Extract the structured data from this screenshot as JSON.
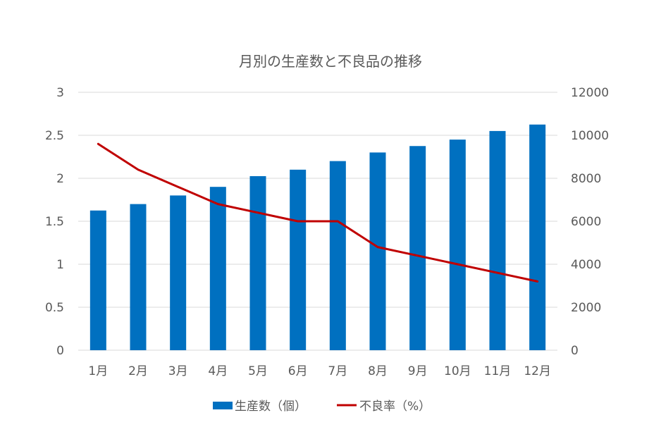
{
  "chart_data": {
    "type": "bar+line",
    "title": "月別の生産数と不良品の推移",
    "categories": [
      "1月",
      "2月",
      "3月",
      "4月",
      "5月",
      "6月",
      "7月",
      "8月",
      "9月",
      "10月",
      "11月",
      "12月"
    ],
    "series": [
      {
        "name": "生産数（個）",
        "type": "bar",
        "axis": "right",
        "color": "#0070C0",
        "values": [
          6500,
          6800,
          7200,
          7600,
          8100,
          8400,
          8800,
          9200,
          9500,
          9800,
          10200,
          10500
        ]
      },
      {
        "name": "不良率（%）",
        "type": "line",
        "axis": "left",
        "color": "#C00000",
        "values": [
          2.4,
          2.1,
          1.9,
          1.7,
          1.6,
          1.5,
          1.5,
          1.2,
          1.1,
          1.0,
          0.9,
          0.8
        ]
      }
    ],
    "left_axis": {
      "ylim": [
        0,
        3
      ],
      "ticks": [
        "0",
        "0.5",
        "1",
        "1.5",
        "2",
        "2.5",
        "3"
      ]
    },
    "right_axis": {
      "ylim": [
        0,
        12000
      ],
      "ticks": [
        "0",
        "2000",
        "4000",
        "6000",
        "8000",
        "10000",
        "12000"
      ]
    },
    "grid": true,
    "legend": "bottom"
  }
}
